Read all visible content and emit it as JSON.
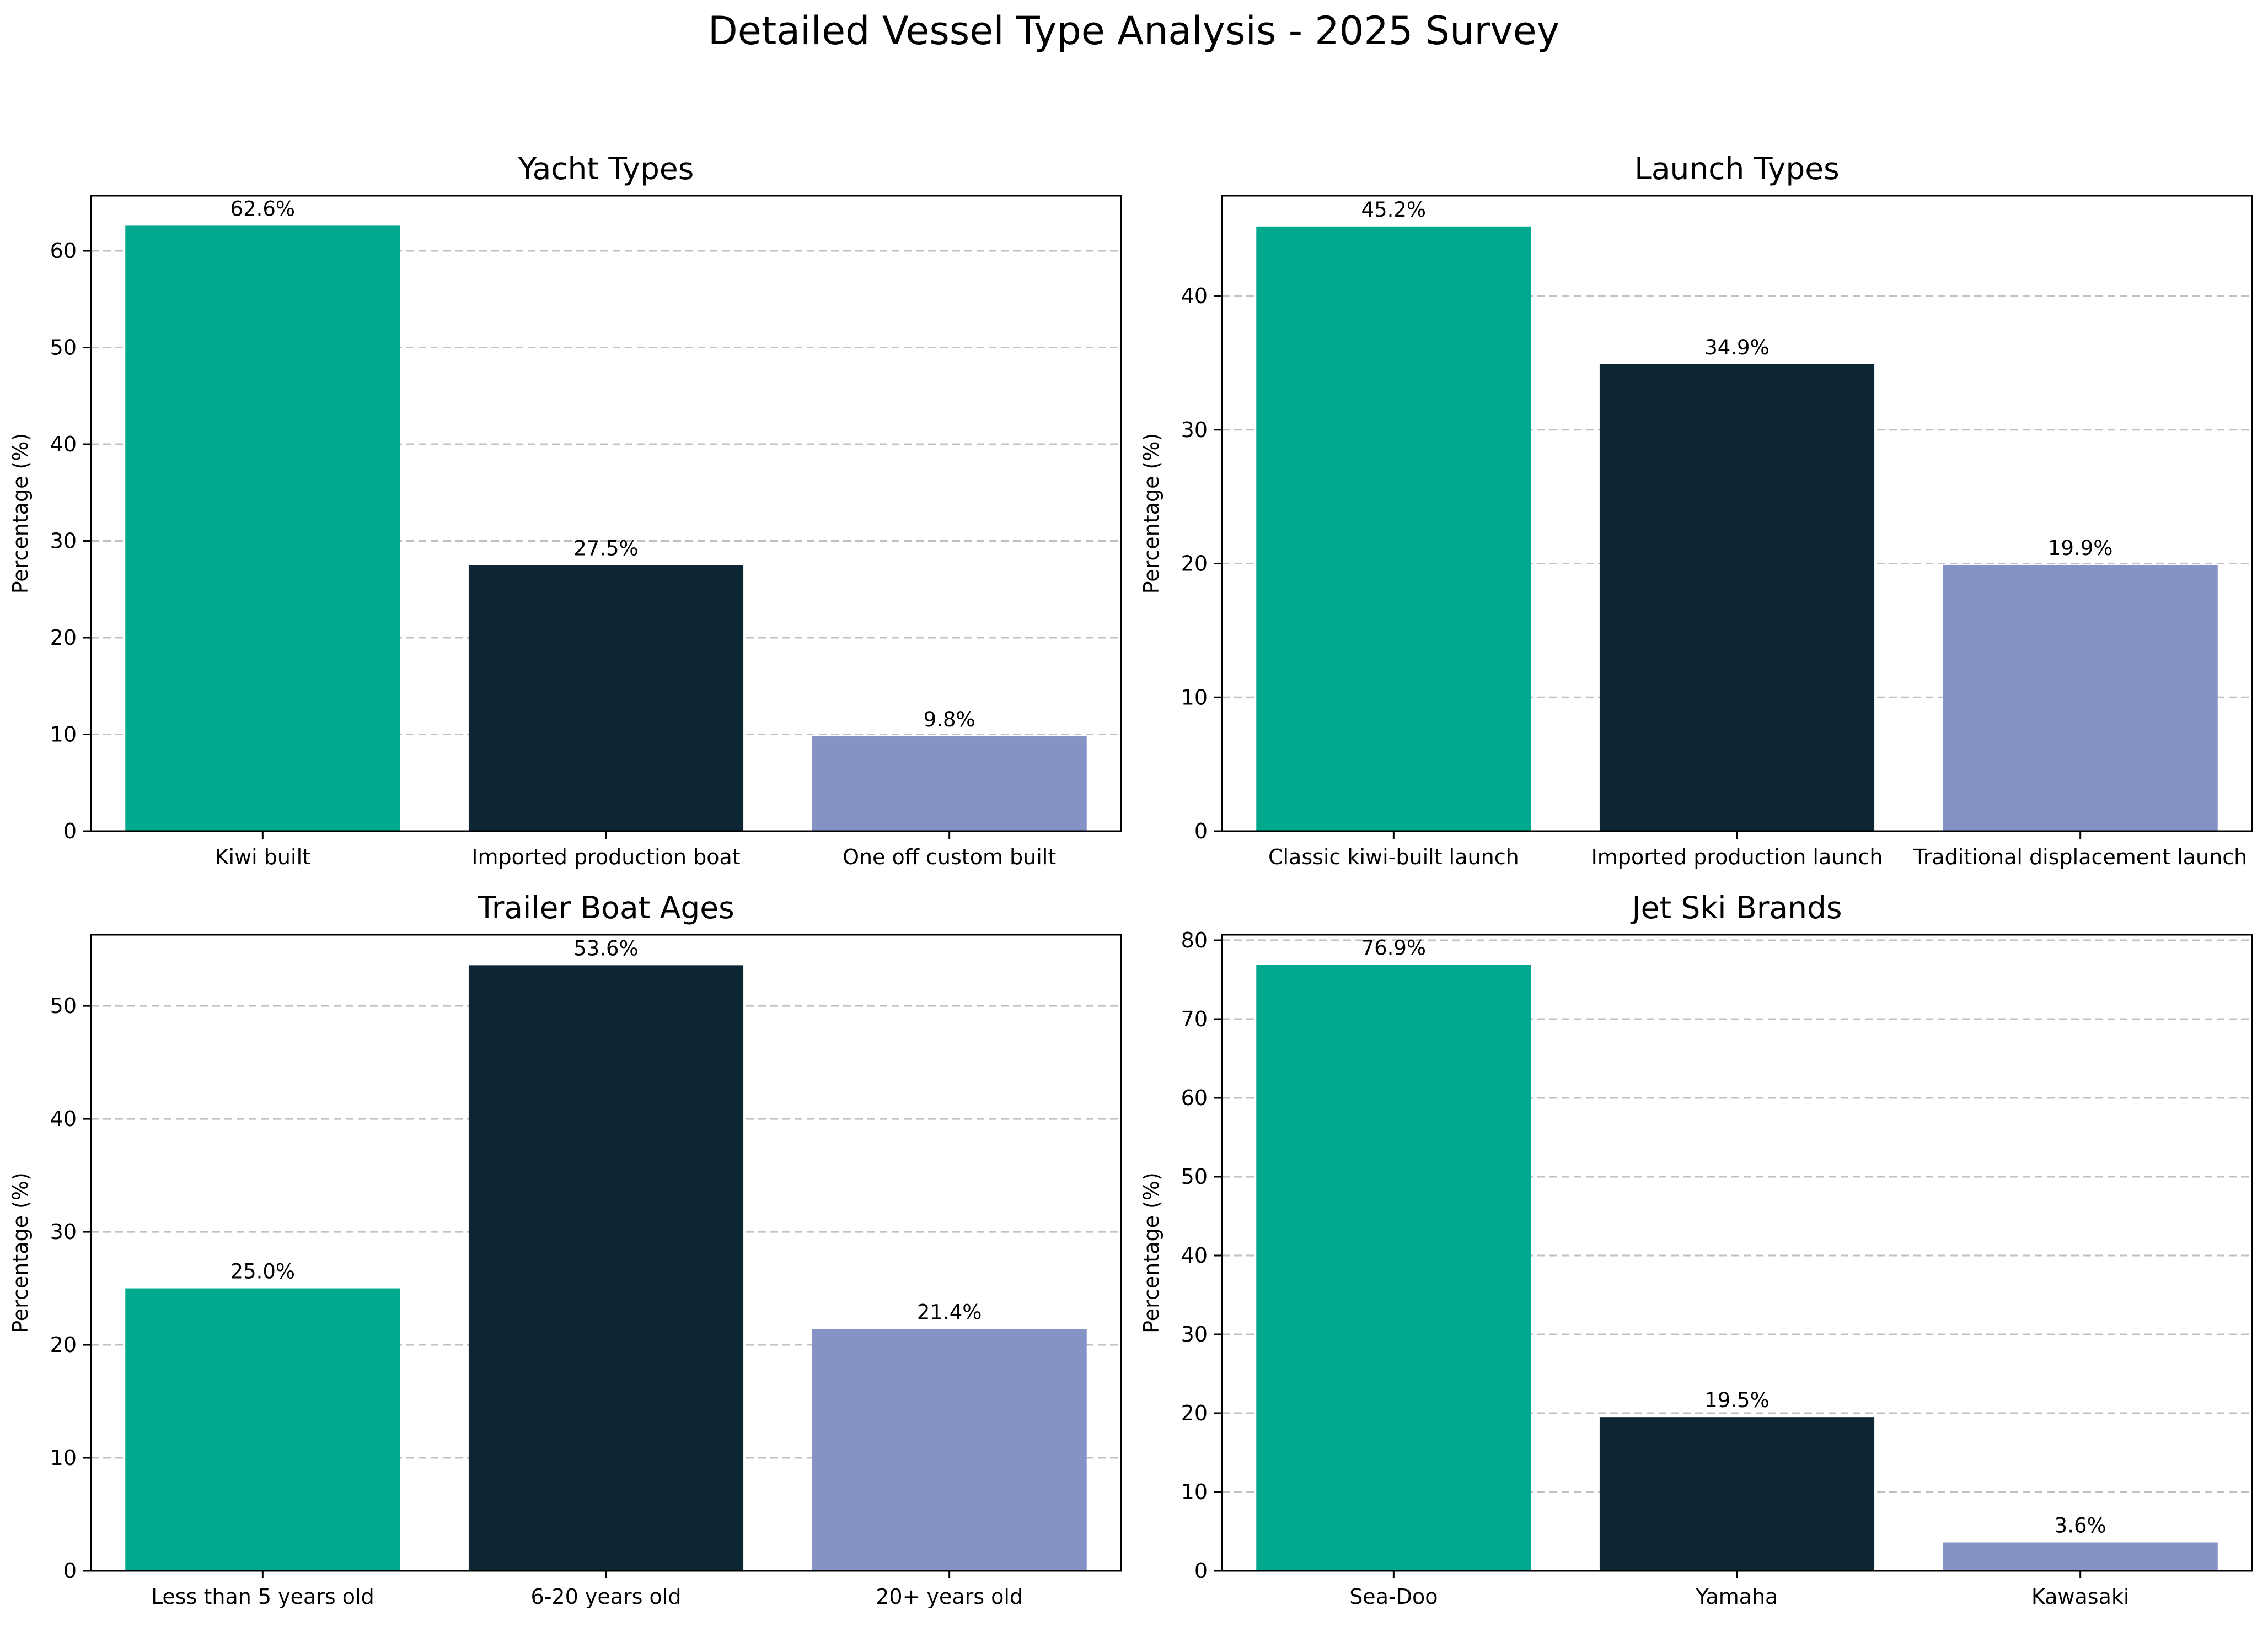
{
  "figure": {
    "title": "Detailed Vessel Type Analysis - 2025 Survey"
  },
  "colors": {
    "series": [
      "#00a88e",
      "#0c2733",
      "#8592c6"
    ],
    "grid": "#c0c0c0",
    "axis": "#000000"
  },
  "chart_data": [
    {
      "type": "bar",
      "title": "Yacht Types",
      "ylabel": "Percentage (%)",
      "xlabel": "",
      "categories": [
        "Kiwi built",
        "Imported production boat",
        "One off custom built"
      ],
      "values": [
        62.6,
        27.5,
        9.8
      ],
      "value_labels": [
        "62.6%",
        "27.5%",
        "9.8%"
      ],
      "ylim": [
        0,
        65.7
      ],
      "yticks": [
        0,
        10,
        20,
        30,
        40,
        50,
        60
      ],
      "grid": "y-dashed",
      "legend": "none"
    },
    {
      "type": "bar",
      "title": "Launch Types",
      "ylabel": "Percentage (%)",
      "xlabel": "",
      "categories": [
        "Classic kiwi-built launch",
        "Imported production launch",
        "Traditional displacement launch"
      ],
      "values": [
        45.2,
        34.9,
        19.9
      ],
      "value_labels": [
        "45.2%",
        "34.9%",
        "19.9%"
      ],
      "ylim": [
        0,
        47.5
      ],
      "yticks": [
        0,
        10,
        20,
        30,
        40
      ],
      "grid": "y-dashed",
      "legend": "none"
    },
    {
      "type": "bar",
      "title": "Trailer Boat Ages",
      "ylabel": "Percentage (%)",
      "xlabel": "",
      "categories": [
        "Less than 5 years old",
        "6-20 years old",
        "20+ years old"
      ],
      "values": [
        25.0,
        53.6,
        21.4
      ],
      "value_labels": [
        "25.0%",
        "53.6%",
        "21.4%"
      ],
      "ylim": [
        0,
        56.3
      ],
      "yticks": [
        0,
        10,
        20,
        30,
        40,
        50
      ],
      "grid": "y-dashed",
      "legend": "none"
    },
    {
      "type": "bar",
      "title": "Jet Ski Brands",
      "ylabel": "Percentage (%)",
      "xlabel": "",
      "categories": [
        "Sea-Doo",
        "Yamaha",
        "Kawasaki"
      ],
      "values": [
        76.9,
        19.5,
        3.6
      ],
      "value_labels": [
        "76.9%",
        "19.5%",
        "3.6%"
      ],
      "ylim": [
        0,
        80.7
      ],
      "yticks": [
        0,
        10,
        20,
        30,
        40,
        50,
        60,
        70,
        80
      ],
      "grid": "y-dashed",
      "legend": "none"
    }
  ]
}
